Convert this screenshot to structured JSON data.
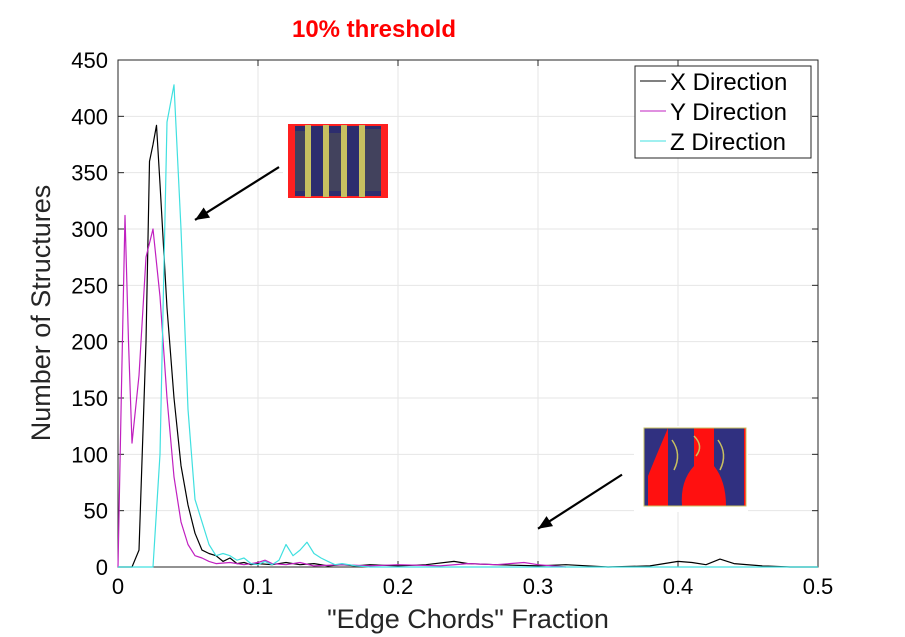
{
  "chart_data": {
    "type": "line",
    "title": "10% threshold",
    "xlabel": "\"Edge Chords\" Fraction",
    "ylabel": "Number of Structures",
    "xlim": [
      0,
      0.5
    ],
    "ylim": [
      0,
      450
    ],
    "xticks": [
      0,
      0.1,
      0.2,
      0.3,
      0.4,
      0.5
    ],
    "xtick_labels": [
      "0",
      "0.1",
      "0.2",
      "0.3",
      "0.4",
      "0.5"
    ],
    "yticks": [
      0,
      50,
      100,
      150,
      200,
      250,
      300,
      350,
      400,
      450
    ],
    "ytick_labels": [
      "0",
      "50",
      "100",
      "150",
      "200",
      "250",
      "300",
      "350",
      "400",
      "450"
    ],
    "grid": true,
    "legend_position": "top-right",
    "series": [
      {
        "name": "X Direction",
        "color": "#000000",
        "points": [
          [
            0,
            0
          ],
          [
            0.005,
            0
          ],
          [
            0.01,
            0
          ],
          [
            0.015,
            15
          ],
          [
            0.02,
            200
          ],
          [
            0.0225,
            360
          ],
          [
            0.025,
            375
          ],
          [
            0.0275,
            392
          ],
          [
            0.03,
            340
          ],
          [
            0.035,
            230
          ],
          [
            0.04,
            150
          ],
          [
            0.045,
            90
          ],
          [
            0.05,
            55
          ],
          [
            0.055,
            30
          ],
          [
            0.06,
            15
          ],
          [
            0.065,
            12
          ],
          [
            0.07,
            10
          ],
          [
            0.075,
            5
          ],
          [
            0.08,
            8
          ],
          [
            0.085,
            3
          ],
          [
            0.09,
            4
          ],
          [
            0.095,
            2
          ],
          [
            0.1,
            3
          ],
          [
            0.11,
            2
          ],
          [
            0.12,
            4
          ],
          [
            0.13,
            2
          ],
          [
            0.14,
            3
          ],
          [
            0.15,
            1
          ],
          [
            0.16,
            2
          ],
          [
            0.17,
            1
          ],
          [
            0.18,
            2
          ],
          [
            0.2,
            1
          ],
          [
            0.22,
            2
          ],
          [
            0.24,
            5
          ],
          [
            0.25,
            3
          ],
          [
            0.27,
            2
          ],
          [
            0.3,
            1
          ],
          [
            0.32,
            2
          ],
          [
            0.35,
            0
          ],
          [
            0.38,
            1
          ],
          [
            0.4,
            5
          ],
          [
            0.41,
            4
          ],
          [
            0.42,
            2
          ],
          [
            0.43,
            7
          ],
          [
            0.44,
            3
          ],
          [
            0.46,
            1
          ],
          [
            0.48,
            0
          ],
          [
            0.5,
            0
          ]
        ]
      },
      {
        "name": "Y Direction",
        "color": "#c020c0",
        "points": [
          [
            0,
            0
          ],
          [
            0.0025,
            160
          ],
          [
            0.005,
            312
          ],
          [
            0.0075,
            200
          ],
          [
            0.01,
            110
          ],
          [
            0.015,
            170
          ],
          [
            0.02,
            275
          ],
          [
            0.025,
            300
          ],
          [
            0.03,
            240
          ],
          [
            0.035,
            150
          ],
          [
            0.04,
            80
          ],
          [
            0.045,
            40
          ],
          [
            0.05,
            20
          ],
          [
            0.055,
            10
          ],
          [
            0.06,
            8
          ],
          [
            0.065,
            5
          ],
          [
            0.07,
            3
          ],
          [
            0.08,
            4
          ],
          [
            0.09,
            2
          ],
          [
            0.1,
            4
          ],
          [
            0.105,
            6
          ],
          [
            0.11,
            3
          ],
          [
            0.12,
            2
          ],
          [
            0.13,
            4
          ],
          [
            0.14,
            1
          ],
          [
            0.16,
            2
          ],
          [
            0.18,
            1
          ],
          [
            0.2,
            2
          ],
          [
            0.23,
            1
          ],
          [
            0.25,
            3
          ],
          [
            0.27,
            2
          ],
          [
            0.29,
            4
          ],
          [
            0.3,
            2
          ],
          [
            0.31,
            1
          ],
          [
            0.32,
            0
          ]
        ]
      },
      {
        "name": "Z Direction",
        "color": "#40e0e0",
        "points": [
          [
            0,
            0
          ],
          [
            0.02,
            0
          ],
          [
            0.025,
            0
          ],
          [
            0.03,
            100
          ],
          [
            0.035,
            395
          ],
          [
            0.04,
            428
          ],
          [
            0.045,
            300
          ],
          [
            0.05,
            140
          ],
          [
            0.055,
            60
          ],
          [
            0.06,
            40
          ],
          [
            0.065,
            20
          ],
          [
            0.07,
            10
          ],
          [
            0.075,
            12
          ],
          [
            0.08,
            10
          ],
          [
            0.085,
            6
          ],
          [
            0.09,
            8
          ],
          [
            0.095,
            3
          ],
          [
            0.1,
            2
          ],
          [
            0.105,
            5
          ],
          [
            0.11,
            2
          ],
          [
            0.115,
            6
          ],
          [
            0.12,
            20
          ],
          [
            0.125,
            10
          ],
          [
            0.13,
            15
          ],
          [
            0.135,
            22
          ],
          [
            0.14,
            12
          ],
          [
            0.145,
            8
          ],
          [
            0.15,
            5
          ],
          [
            0.155,
            2
          ],
          [
            0.16,
            3
          ],
          [
            0.17,
            1
          ],
          [
            0.18,
            0
          ],
          [
            0.2,
            0
          ],
          [
            0.25,
            0
          ],
          [
            0.3,
            0
          ],
          [
            0.35,
            0
          ],
          [
            0.4,
            0
          ],
          [
            0.45,
            0
          ],
          [
            0.5,
            0
          ]
        ]
      }
    ],
    "annotations": [
      {
        "type": "arrow",
        "from": [
          0.115,
          355
        ],
        "to": [
          0.055,
          308
        ]
      },
      {
        "type": "arrow",
        "from": [
          0.36,
          82
        ],
        "to": [
          0.3,
          34
        ]
      }
    ]
  },
  "insets": [
    {
      "name": "inset-striped-structure",
      "background": "#2d2d6e",
      "border": "#ff2020",
      "stripe_color": "#c8c060"
    },
    {
      "name": "inset-dendritic-structure",
      "background": "#ff1010",
      "border": "#ffffff",
      "stripe_color": "#303080"
    }
  ]
}
